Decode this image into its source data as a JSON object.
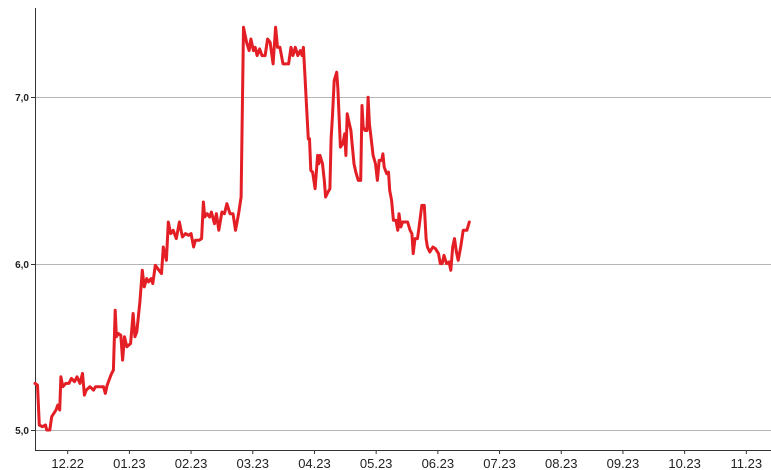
{
  "chart_data": {
    "type": "line",
    "title": "",
    "xlabel": "",
    "ylabel": "",
    "ylim": [
      5.0,
      7.5
    ],
    "y_ticks": [
      {
        "value": 5.0,
        "label": "5,0"
      },
      {
        "value": 6.0,
        "label": "6,0"
      },
      {
        "value": 7.0,
        "label": "7,0"
      }
    ],
    "x_ticks": [
      {
        "value": 0.75,
        "label": "12.22"
      },
      {
        "value": 1.75,
        "label": "01.23"
      },
      {
        "value": 2.75,
        "label": "02.23"
      },
      {
        "value": 3.75,
        "label": "03.23"
      },
      {
        "value": 4.75,
        "label": "04.23"
      },
      {
        "value": 5.75,
        "label": "05.23"
      },
      {
        "value": 6.75,
        "label": "06.23"
      },
      {
        "value": 7.75,
        "label": "07.23"
      },
      {
        "value": 8.75,
        "label": "08.23"
      },
      {
        "value": 9.75,
        "label": "09.23"
      },
      {
        "value": 10.75,
        "label": "10.23"
      },
      {
        "value": 11.75,
        "label": "11.23"
      }
    ],
    "xlim": [
      0.22,
      12.15
    ],
    "grid": true,
    "line_color": "#e31e24",
    "series": [
      {
        "points": [
          [
            0.22,
            5.28
          ],
          [
            0.26,
            5.27
          ],
          [
            0.29,
            5.03
          ],
          [
            0.34,
            5.02
          ],
          [
            0.39,
            5.03
          ],
          [
            0.41,
            5.0
          ],
          [
            0.46,
            5.0
          ],
          [
            0.49,
            5.08
          ],
          [
            0.56,
            5.12
          ],
          [
            0.59,
            5.15
          ],
          [
            0.62,
            5.12
          ],
          [
            0.64,
            5.32
          ],
          [
            0.67,
            5.26
          ],
          [
            0.72,
            5.28
          ],
          [
            0.77,
            5.28
          ],
          [
            0.81,
            5.31
          ],
          [
            0.86,
            5.29
          ],
          [
            0.9,
            5.32
          ],
          [
            0.95,
            5.28
          ],
          [
            0.99,
            5.34
          ],
          [
            1.02,
            5.21
          ],
          [
            1.05,
            5.24
          ],
          [
            1.11,
            5.26
          ],
          [
            1.17,
            5.24
          ],
          [
            1.2,
            5.26
          ],
          [
            1.27,
            5.26
          ],
          [
            1.33,
            5.26
          ],
          [
            1.36,
            5.22
          ],
          [
            1.39,
            5.27
          ],
          [
            1.45,
            5.33
          ],
          [
            1.49,
            5.36
          ],
          [
            1.52,
            5.72
          ],
          [
            1.54,
            5.56
          ],
          [
            1.57,
            5.58
          ],
          [
            1.61,
            5.57
          ],
          [
            1.64,
            5.42
          ],
          [
            1.67,
            5.56
          ],
          [
            1.71,
            5.5
          ],
          [
            1.77,
            5.52
          ],
          [
            1.81,
            5.7
          ],
          [
            1.84,
            5.56
          ],
          [
            1.87,
            5.59
          ],
          [
            1.92,
            5.77
          ],
          [
            1.96,
            5.96
          ],
          [
            1.99,
            5.86
          ],
          [
            2.03,
            5.91
          ],
          [
            2.06,
            5.89
          ],
          [
            2.1,
            5.91
          ],
          [
            2.13,
            5.88
          ],
          [
            2.17,
            5.99
          ],
          [
            2.23,
            5.96
          ],
          [
            2.27,
            5.94
          ],
          [
            2.3,
            6.1
          ],
          [
            2.35,
            6.02
          ],
          [
            2.38,
            6.25
          ],
          [
            2.42,
            6.18
          ],
          [
            2.46,
            6.2
          ],
          [
            2.51,
            6.15
          ],
          [
            2.56,
            6.25
          ],
          [
            2.61,
            6.16
          ],
          [
            2.66,
            6.18
          ],
          [
            2.71,
            6.17
          ],
          [
            2.75,
            6.18
          ],
          [
            2.79,
            6.1
          ],
          [
            2.82,
            6.14
          ],
          [
            2.88,
            6.14
          ],
          [
            2.92,
            6.15
          ],
          [
            2.95,
            6.37
          ],
          [
            2.97,
            6.28
          ],
          [
            3.01,
            6.3
          ],
          [
            3.05,
            6.28
          ],
          [
            3.08,
            6.31
          ],
          [
            3.13,
            6.24
          ],
          [
            3.16,
            6.3
          ],
          [
            3.2,
            6.2
          ],
          [
            3.25,
            6.31
          ],
          [
            3.29,
            6.3
          ],
          [
            3.33,
            6.36
          ],
          [
            3.38,
            6.3
          ],
          [
            3.43,
            6.3
          ],
          [
            3.47,
            6.2
          ],
          [
            3.52,
            6.3
          ],
          [
            3.56,
            6.4
          ],
          [
            3.6,
            7.42
          ],
          [
            3.65,
            7.33
          ],
          [
            3.69,
            7.28
          ],
          [
            3.72,
            7.35
          ],
          [
            3.76,
            7.28
          ],
          [
            3.79,
            7.3
          ],
          [
            3.82,
            7.25
          ],
          [
            3.86,
            7.29
          ],
          [
            3.9,
            7.25
          ],
          [
            3.95,
            7.25
          ],
          [
            3.99,
            7.35
          ],
          [
            4.03,
            7.33
          ],
          [
            4.08,
            7.2
          ],
          [
            4.12,
            7.42
          ],
          [
            4.15,
            7.3
          ],
          [
            4.19,
            7.3
          ],
          [
            4.24,
            7.2
          ],
          [
            4.28,
            7.2
          ],
          [
            4.33,
            7.2
          ],
          [
            4.37,
            7.3
          ],
          [
            4.4,
            7.25
          ],
          [
            4.44,
            7.3
          ],
          [
            4.48,
            7.25
          ],
          [
            4.52,
            7.28
          ],
          [
            4.55,
            7.25
          ],
          [
            4.57,
            7.3
          ],
          [
            4.6,
            7.1
          ],
          [
            4.62,
            6.95
          ],
          [
            4.65,
            6.75
          ],
          [
            4.67,
            6.75
          ],
          [
            4.69,
            6.56
          ],
          [
            4.72,
            6.55
          ],
          [
            4.76,
            6.45
          ],
          [
            4.8,
            6.65
          ],
          [
            4.82,
            6.6
          ],
          [
            4.84,
            6.65
          ],
          [
            4.88,
            6.6
          ],
          [
            4.91,
            6.5
          ],
          [
            4.93,
            6.4
          ],
          [
            4.97,
            6.43
          ],
          [
            5.0,
            6.45
          ],
          [
            5.02,
            6.75
          ],
          [
            5.04,
            6.88
          ],
          [
            5.07,
            7.1
          ],
          [
            5.11,
            7.15
          ],
          [
            5.13,
            7.05
          ],
          [
            5.17,
            6.7
          ],
          [
            5.21,
            6.72
          ],
          [
            5.24,
            6.78
          ],
          [
            5.26,
            6.65
          ],
          [
            5.28,
            6.9
          ],
          [
            5.31,
            6.85
          ],
          [
            5.34,
            6.8
          ],
          [
            5.36,
            6.72
          ],
          [
            5.39,
            6.6
          ],
          [
            5.42,
            6.55
          ],
          [
            5.46,
            6.5
          ],
          [
            5.5,
            6.5
          ],
          [
            5.52,
            6.95
          ],
          [
            5.54,
            6.82
          ],
          [
            5.57,
            6.8
          ],
          [
            5.6,
            6.8
          ],
          [
            5.62,
            7.0
          ],
          [
            5.64,
            6.84
          ],
          [
            5.67,
            6.75
          ],
          [
            5.7,
            6.65
          ],
          [
            5.74,
            6.6
          ],
          [
            5.77,
            6.5
          ],
          [
            5.8,
            6.62
          ],
          [
            5.84,
            6.62
          ],
          [
            5.86,
            6.66
          ],
          [
            5.88,
            6.58
          ],
          [
            5.92,
            6.54
          ],
          [
            5.95,
            6.55
          ],
          [
            5.97,
            6.44
          ],
          [
            6.0,
            6.38
          ],
          [
            6.03,
            6.26
          ],
          [
            6.07,
            6.26
          ],
          [
            6.1,
            6.2
          ],
          [
            6.12,
            6.3
          ],
          [
            6.15,
            6.22
          ],
          [
            6.18,
            6.25
          ],
          [
            6.22,
            6.25
          ],
          [
            6.26,
            6.25
          ],
          [
            6.3,
            6.2
          ],
          [
            6.33,
            6.18
          ],
          [
            6.35,
            6.06
          ],
          [
            6.38,
            6.15
          ],
          [
            6.42,
            6.15
          ],
          [
            6.45,
            6.23
          ],
          [
            6.49,
            6.35
          ],
          [
            6.53,
            6.35
          ],
          [
            6.56,
            6.15
          ],
          [
            6.58,
            6.1
          ],
          [
            6.62,
            6.07
          ],
          [
            6.67,
            6.1
          ],
          [
            6.71,
            6.09
          ],
          [
            6.76,
            6.06
          ],
          [
            6.79,
            6.0
          ],
          [
            6.82,
            6.0
          ],
          [
            6.85,
            6.05
          ],
          [
            6.89,
            6.0
          ],
          [
            6.93,
            6.01
          ],
          [
            6.96,
            5.96
          ],
          [
            6.99,
            6.1
          ],
          [
            7.02,
            6.15
          ],
          [
            7.05,
            6.07
          ],
          [
            7.08,
            6.02
          ],
          [
            7.12,
            6.1
          ],
          [
            7.16,
            6.2
          ],
          [
            7.22,
            6.2
          ],
          [
            7.26,
            6.25
          ]
        ]
      }
    ]
  }
}
